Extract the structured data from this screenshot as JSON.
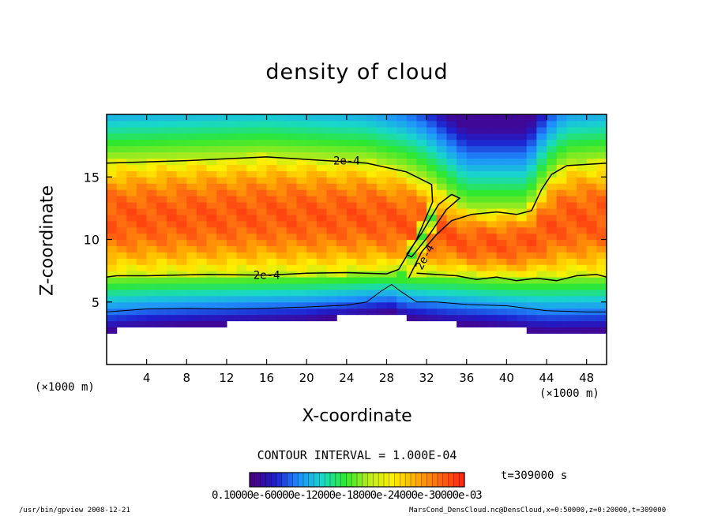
{
  "window": {
    "title": "density of cloud"
  },
  "chart_data": {
    "type": "heatmap",
    "title": "density of cloud",
    "xlabel": "X-coordinate",
    "ylabel": "Z-coordinate",
    "x_unit": "(×1000 m)",
    "y_unit": "(×1000 m)",
    "xlim": [
      0,
      50
    ],
    "ylim": [
      0,
      20
    ],
    "x_ticks": [
      4,
      8,
      12,
      16,
      20,
      24,
      28,
      32,
      36,
      40,
      44,
      48
    ],
    "y_ticks": [
      5,
      10,
      15
    ],
    "x_tick_labels": [
      "4",
      "8",
      "12",
      "16",
      "20",
      "24",
      "28",
      "32",
      "36",
      "40",
      "44",
      "48"
    ],
    "y_tick_labels": [
      "5",
      "10",
      "15"
    ],
    "contour_interval": "CONTOUR INTERVAL = 1.000E-04",
    "contour_labels": [
      "2e-4",
      "2e-4",
      "2e-4"
    ],
    "contours": [
      {
        "label": "2e-4",
        "points": [
          [
            0,
            16.1
          ],
          [
            8,
            16.3
          ],
          [
            16,
            16.6
          ],
          [
            22,
            16.3
          ],
          [
            26,
            16.1
          ],
          [
            30,
            15.4
          ],
          [
            32.5,
            14.4
          ],
          [
            32.6,
            13
          ],
          [
            31,
            10
          ],
          [
            29.2,
            7.6
          ],
          [
            28,
            7.25
          ],
          [
            24,
            7.35
          ],
          [
            20,
            7.3
          ],
          [
            16,
            7.15
          ],
          [
            10,
            7.2
          ],
          [
            4,
            7.1
          ],
          [
            1,
            7.1
          ],
          [
            0,
            7.0
          ]
        ]
      },
      {
        "label": "",
        "points": [
          [
            30,
            8.8
          ],
          [
            31.5,
            10.5
          ],
          [
            33.2,
            12.8
          ],
          [
            34.5,
            13.6
          ],
          [
            35.3,
            13.3
          ],
          [
            34,
            12.4
          ],
          [
            32.2,
            10.3
          ],
          [
            30.5,
            8.6
          ],
          [
            30,
            8.8
          ]
        ]
      },
      {
        "label": "2e-4",
        "points": [
          [
            30.2,
            6.9
          ],
          [
            31.5,
            9
          ],
          [
            33,
            10.4
          ],
          [
            34.5,
            11.5
          ],
          [
            36.5,
            12
          ],
          [
            39,
            12.2
          ],
          [
            41,
            12
          ],
          [
            42.5,
            12.3
          ],
          [
            43.5,
            14
          ],
          [
            44.5,
            15.2
          ],
          [
            46,
            15.9
          ],
          [
            48,
            16
          ],
          [
            50,
            16.1
          ]
        ]
      },
      {
        "label": "",
        "points": [
          [
            31,
            7.3
          ],
          [
            33,
            7.2
          ],
          [
            35,
            7.1
          ],
          [
            37,
            6.8
          ],
          [
            39,
            7.0
          ],
          [
            41,
            6.7
          ],
          [
            43,
            6.9
          ],
          [
            45,
            6.7
          ],
          [
            47,
            7.1
          ],
          [
            49,
            7.2
          ],
          [
            50,
            7.0
          ]
        ]
      },
      {
        "label": "",
        "points": [
          [
            0,
            4.2
          ],
          [
            4,
            4.45
          ],
          [
            8,
            4.5
          ],
          [
            12,
            4.45
          ],
          [
            16,
            4.5
          ],
          [
            20,
            4.6
          ],
          [
            24,
            4.75
          ],
          [
            26,
            5.0
          ],
          [
            27.5,
            5.9
          ],
          [
            28.5,
            6.4
          ],
          [
            29.5,
            5.8
          ],
          [
            31,
            5.0
          ],
          [
            33,
            5.0
          ],
          [
            36,
            4.8
          ],
          [
            40,
            4.7
          ],
          [
            44,
            4.3
          ],
          [
            48,
            4.2
          ],
          [
            50,
            4.2
          ]
        ]
      }
    ],
    "colorbar": {
      "colormap": [
        "#4b0082",
        "#1e1ecc",
        "#1f8fff",
        "#18d8c8",
        "#2ee82e",
        "#b8ec1c",
        "#fff000",
        "#ffb000",
        "#ff6a10",
        "#ff2a10"
      ],
      "tick_labels_text": "0.10000e-60000e-12000e-18000e-24000e-30000e-03"
    },
    "time_label": "t=309000 s"
  },
  "footer": {
    "left": "/usr/bin/gpview  2008-12-21",
    "right": "MarsCond_DensCloud.nc@DensCloud,x=0:50000,z=0:20000,t=309000"
  }
}
